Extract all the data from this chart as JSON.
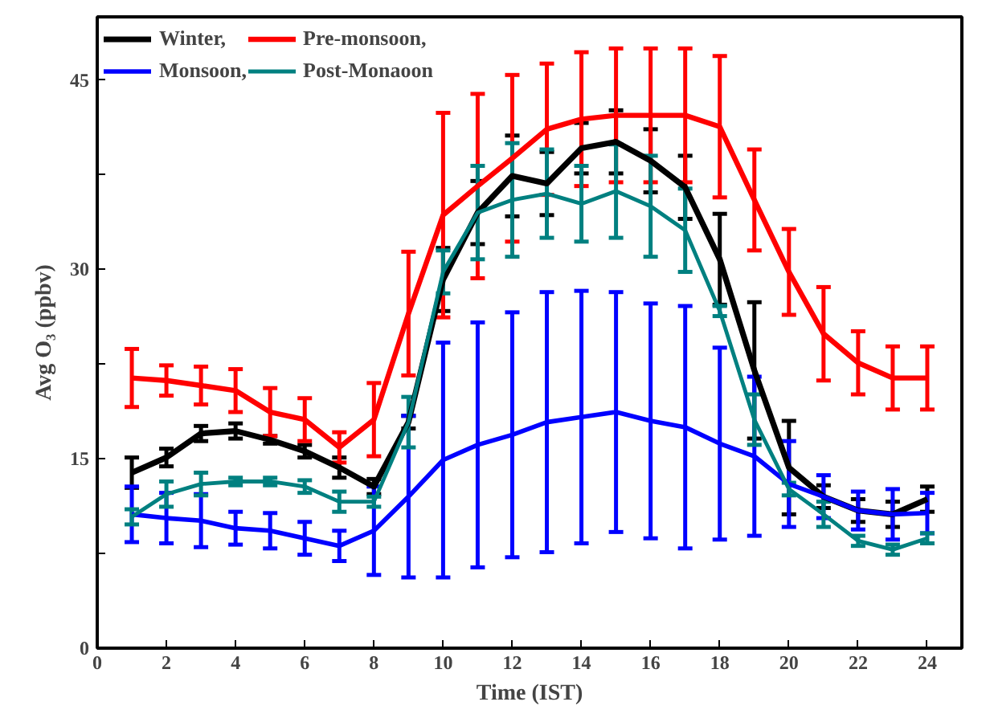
{
  "chart_data": {
    "type": "line",
    "xlabel": "Time (IST)",
    "ylabel": "Avg O₃ (ppbv)",
    "x": [
      1,
      2,
      3,
      4,
      5,
      6,
      7,
      8,
      9,
      10,
      11,
      12,
      13,
      14,
      15,
      16,
      17,
      18,
      19,
      20,
      21,
      22,
      23,
      24
    ],
    "xlim": [
      0,
      25
    ],
    "ylim": [
      0,
      50
    ],
    "xticks": [
      0,
      2,
      4,
      6,
      8,
      10,
      12,
      14,
      16,
      18,
      20,
      22,
      24
    ],
    "yticks": [
      0,
      {
        "value": 7.5,
        "label": null
      },
      15,
      {
        "value": 22.5,
        "label": null
      },
      30,
      {
        "value": 37.5,
        "label": null
      },
      45
    ],
    "grid": false,
    "legend": "top left",
    "line_style": "solid",
    "series": [
      {
        "name": "Winter,",
        "color": "#000000",
        "values": [
          13.9,
          15.1,
          17.0,
          17.2,
          16.5,
          15.6,
          14.3,
          12.8,
          17.9,
          29.2,
          34.5,
          37.4,
          36.8,
          39.6,
          40.1,
          38.6,
          36.5,
          30.8,
          22.0,
          14.3,
          12.0,
          10.9,
          10.6,
          11.8
        ],
        "errors": [
          1.2,
          0.7,
          0.6,
          0.6,
          0.3,
          0.5,
          0.8,
          0.6,
          0.5,
          2.5,
          2.5,
          3.2,
          2.5,
          2.0,
          2.5,
          2.5,
          2.5,
          3.6,
          5.4,
          3.7,
          0.9,
          0.9,
          1.0,
          1.0
        ]
      },
      {
        "name": "Pre-monsoon,",
        "color": "#ff0000",
        "values": [
          21.4,
          21.2,
          20.8,
          20.4,
          18.7,
          18.1,
          15.9,
          18.1,
          26.5,
          34.3,
          36.6,
          38.8,
          41.1,
          41.9,
          42.2,
          42.2,
          42.2,
          41.3,
          35.5,
          29.8,
          24.9,
          22.6,
          21.4,
          21.4
        ],
        "errors": [
          2.3,
          1.2,
          1.5,
          1.7,
          1.9,
          1.7,
          1.2,
          2.9,
          4.9,
          8.1,
          7.3,
          6.6,
          5.2,
          5.3,
          5.3,
          5.3,
          5.3,
          5.6,
          4.0,
          3.4,
          3.7,
          2.5,
          2.5,
          2.5
        ]
      },
      {
        "name": "Monsoon,",
        "color": "#0000ff",
        "values": [
          10.6,
          10.3,
          10.1,
          9.5,
          9.3,
          8.7,
          8.1,
          9.3,
          12.0,
          14.9,
          16.1,
          16.9,
          17.9,
          18.3,
          18.7,
          18.0,
          17.5,
          16.2,
          15.2,
          13.0,
          12.0,
          10.9,
          10.6,
          10.7
        ],
        "errors": [
          2.2,
          2.0,
          2.1,
          1.3,
          1.4,
          1.3,
          1.2,
          3.5,
          6.4,
          9.3,
          9.7,
          9.7,
          10.3,
          10.0,
          9.5,
          9.3,
          9.6,
          7.6,
          6.3,
          3.4,
          1.7,
          1.5,
          2.0,
          1.6
        ]
      },
      {
        "name": "Post-Monaoon",
        "color": "#008080",
        "values": [
          10.4,
          12.2,
          13.0,
          13.2,
          13.2,
          12.8,
          11.6,
          11.6,
          17.9,
          29.8,
          34.5,
          35.5,
          36.0,
          35.2,
          36.2,
          35.0,
          33.1,
          26.7,
          18.1,
          12.6,
          10.6,
          8.5,
          7.8,
          8.7
        ],
        "errors": [
          0.6,
          1.0,
          0.9,
          0.3,
          0.3,
          0.5,
          0.8,
          0.4,
          2.0,
          1.7,
          3.7,
          4.5,
          3.5,
          3.0,
          3.7,
          4.0,
          3.3,
          0.4,
          2.0,
          0.5,
          1.0,
          0.4,
          0.4,
          0.4
        ]
      }
    ]
  }
}
